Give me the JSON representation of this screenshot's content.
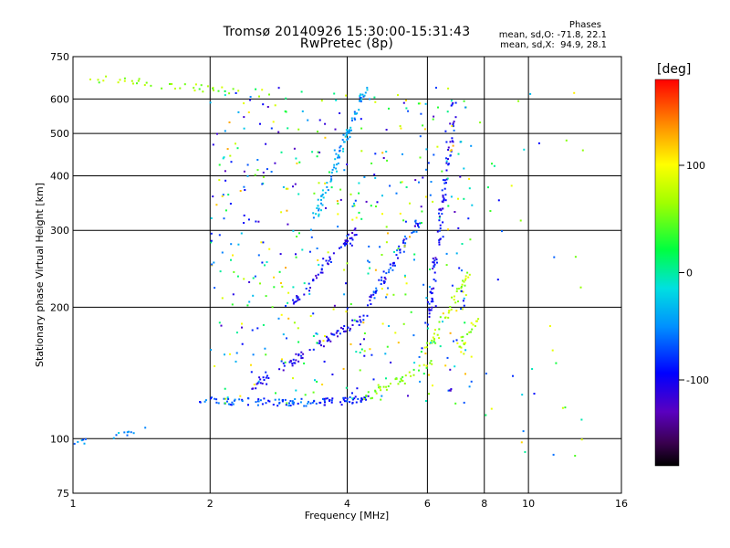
{
  "header": {
    "title_line1": "Tromsø 20140926 15:30:00-15:31:43",
    "title_line2": "RwPretec (8p)",
    "stats_heading": "Phases",
    "stats_o": "mean, sd,O: -71.8, 22.1",
    "stats_x": "mean, sd,X:  94.9, 28.1"
  },
  "colorbar": {
    "label": "[deg]",
    "ticks": [
      {
        "value": 100,
        "label": "100"
      },
      {
        "value": 0,
        "label": "0"
      },
      {
        "value": -100,
        "label": "-100"
      }
    ],
    "range": [
      -180,
      180
    ]
  },
  "chart_data": {
    "type": "scatter",
    "title": "Tromsø 20140926 15:30:00-15:31:43",
    "subtitle": "RwPretec (8p)",
    "xlabel": "Frequency [MHz]",
    "ylabel": "Stationary phase Virtual Height [km]",
    "x_scale": "log",
    "y_scale": "log",
    "xlim": [
      1,
      16
    ],
    "ylim": [
      75,
      750
    ],
    "x_ticks": [
      {
        "value": 1,
        "label": "1"
      },
      {
        "value": 2,
        "label": "2"
      },
      {
        "value": 4,
        "label": "4"
      },
      {
        "value": 6,
        "label": "6"
      },
      {
        "value": 8,
        "label": "8"
      },
      {
        "value": 10,
        "label": "10"
      },
      {
        "value": 16,
        "label": "16"
      }
    ],
    "y_ticks": [
      {
        "value": 75,
        "label": "75"
      },
      {
        "value": 100,
        "label": "100"
      },
      {
        "value": 200,
        "label": "200"
      },
      {
        "value": 300,
        "label": "300"
      },
      {
        "value": 400,
        "label": "400"
      },
      {
        "value": 500,
        "label": "500"
      },
      {
        "value": 600,
        "label": "600"
      },
      {
        "value": 750,
        "label": "750"
      }
    ],
    "grid": true,
    "color_by": "phase [deg]",
    "traces": [
      {
        "x0": 1.0,
        "x1": 1.08,
        "h0": 96,
        "h1": 100,
        "phase": -60,
        "n": 6
      },
      {
        "x0": 1.2,
        "x1": 1.45,
        "h0": 100,
        "h1": 105,
        "phase": -40,
        "n": 10
      },
      {
        "x0": 1.05,
        "x1": 2.8,
        "h0": 670,
        "h1": 615,
        "phase": 60,
        "n": 40
      },
      {
        "x0": 1.9,
        "x1": 3.4,
        "h0": 122,
        "h1": 121,
        "phase": -70,
        "n": 70
      },
      {
        "x0": 3.4,
        "x1": 4.4,
        "h0": 121,
        "h1": 123,
        "phase": -90,
        "n": 45
      },
      {
        "x0": 4.4,
        "x1": 6.2,
        "h0": 125,
        "h1": 150,
        "phase": 60,
        "n": 40
      },
      {
        "x0": 3.4,
        "x1": 4.4,
        "h0": 320,
        "h1": 640,
        "phase": -40,
        "n": 90
      },
      {
        "x0": 2.4,
        "x1": 4.4,
        "h0": 130,
        "h1": 190,
        "phase": -100,
        "n": 80
      },
      {
        "x0": 4.4,
        "x1": 5.8,
        "h0": 200,
        "h1": 320,
        "phase": -80,
        "n": 60
      },
      {
        "x0": 6.0,
        "x1": 6.9,
        "h0": 180,
        "h1": 600,
        "phase": -100,
        "n": 90
      },
      {
        "x0": 6.0,
        "x1": 7.4,
        "h0": 160,
        "h1": 240,
        "phase": 70,
        "n": 45
      },
      {
        "x0": 7.0,
        "x1": 7.8,
        "h0": 160,
        "h1": 190,
        "phase": 70,
        "n": 20
      },
      {
        "x0": 3.0,
        "x1": 4.2,
        "h0": 200,
        "h1": 300,
        "phase": -100,
        "n": 60
      }
    ],
    "scatter": [
      {
        "x_range": [
          2.0,
          7.5
        ],
        "h_range": [
          120,
          640
        ],
        "phase_range": [
          -130,
          130
        ],
        "n": 500
      },
      {
        "x_range": [
          7.5,
          13.5
        ],
        "h_range": [
          90,
          620
        ],
        "phase_range": [
          -110,
          120
        ],
        "n": 40
      }
    ]
  }
}
